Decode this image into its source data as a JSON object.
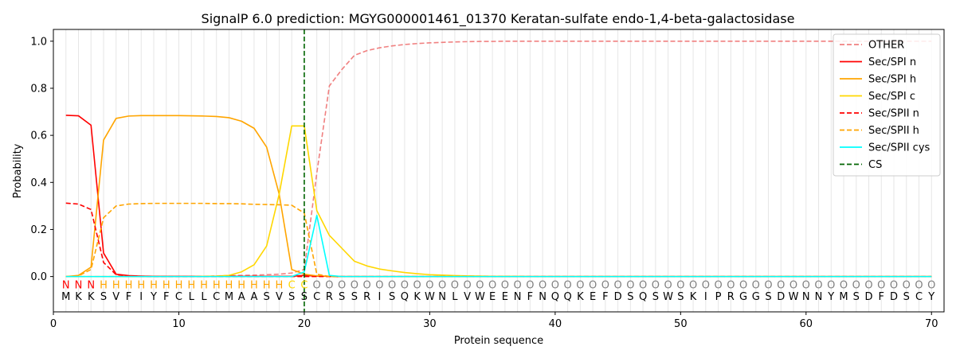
{
  "chart_data": {
    "type": "line",
    "title": "SignalP 6.0 prediction: MGYG000001461_01370 Keratan-sulfate endo-1,4-beta-galactosidase",
    "xlabel": "Protein sequence",
    "ylabel": "Probability",
    "xlim": [
      0,
      71
    ],
    "ylim": [
      -0.15,
      1.05
    ],
    "xticks": [
      0,
      10,
      20,
      30,
      40,
      50,
      60,
      70
    ],
    "yticks": [
      0.0,
      0.2,
      0.4,
      0.6,
      0.8,
      1.0
    ],
    "ytick_labels": [
      "0.0",
      "0.2",
      "0.4",
      "0.6",
      "0.8",
      "1.0"
    ],
    "grid": "vertical lines at each residue",
    "legend_position": "top-right",
    "sequence": "MKKSVFIYFCLLCMAASVSSCRSSRISQKWNLVWEENFNQQKEFDSQSWSKIPRGGSDWNNYMSDFDSCY",
    "labels": "NNNHHHHHHHHHHHHHHHCCOOOOOOOOOOOOOOOOOOOOOOOOOOOOOOOOOOOOOOOOOOOOOOOOOO",
    "label_colors": {
      "N": "#ff0000",
      "H": "#ffa500",
      "C": "#ffd700",
      "O": "#808080"
    },
    "cleavage_site": 20,
    "series": [
      {
        "name": "OTHER",
        "color": "#f08080",
        "dash": "dashed",
        "values": [
          0.0,
          0.0,
          0.0,
          0.0,
          0.0,
          0.0,
          0.0,
          0.0,
          0.0,
          0.0,
          0.0,
          0.0,
          0.003,
          0.004,
          0.005,
          0.006,
          0.008,
          0.01,
          0.015,
          0.03,
          0.44,
          0.81,
          0.88,
          0.94,
          0.96,
          0.972,
          0.98,
          0.986,
          0.99,
          0.993,
          0.995,
          0.997,
          0.998,
          0.999,
          0.999,
          1.0,
          1.0,
          1.0,
          1.0,
          1.0,
          1.0,
          1.0,
          1.0,
          1.0,
          1.0,
          1.0,
          1.0,
          1.0,
          1.0,
          1.0,
          1.0,
          1.0,
          1.0,
          1.0,
          1.0,
          1.0,
          1.0,
          1.0,
          1.0,
          1.0,
          1.0,
          1.0,
          1.0,
          1.0,
          1.0,
          1.0,
          1.0,
          1.0,
          1.0,
          1.0
        ]
      },
      {
        "name": "Sec/SPI n",
        "color": "#ff0000",
        "dash": "solid",
        "values": [
          0.685,
          0.683,
          0.643,
          0.1,
          0.01,
          0.004,
          0.002,
          0.001,
          0.001,
          0.001,
          0.001,
          0.001,
          0.001,
          0.001,
          0.001,
          0.001,
          0.001,
          0.001,
          0.001,
          0.005,
          0.002,
          0.001,
          0.0,
          0.0,
          0.0,
          0.0,
          0.0,
          0.0,
          0.0,
          0.0,
          0.0,
          0.0,
          0.0,
          0.0,
          0.0,
          0.0,
          0.0,
          0.0,
          0.0,
          0.0,
          0.0,
          0.0,
          0.0,
          0.0,
          0.0,
          0.0,
          0.0,
          0.0,
          0.0,
          0.0,
          0.0,
          0.0,
          0.0,
          0.0,
          0.0,
          0.0,
          0.0,
          0.0,
          0.0,
          0.0,
          0.0,
          0.0,
          0.0,
          0.0,
          0.0,
          0.0,
          0.0,
          0.0,
          0.0,
          0.0
        ]
      },
      {
        "name": "Sec/SPI h",
        "color": "#ffa500",
        "dash": "solid",
        "values": [
          0.0,
          0.005,
          0.04,
          0.58,
          0.672,
          0.682,
          0.684,
          0.684,
          0.684,
          0.684,
          0.683,
          0.682,
          0.68,
          0.675,
          0.66,
          0.63,
          0.55,
          0.35,
          0.03,
          0.01,
          0.003,
          0.001,
          0.0,
          0.0,
          0.0,
          0.0,
          0.0,
          0.0,
          0.0,
          0.0,
          0.0,
          0.0,
          0.0,
          0.0,
          0.0,
          0.0,
          0.0,
          0.0,
          0.0,
          0.0,
          0.0,
          0.0,
          0.0,
          0.0,
          0.0,
          0.0,
          0.0,
          0.0,
          0.0,
          0.0,
          0.0,
          0.0,
          0.0,
          0.0,
          0.0,
          0.0,
          0.0,
          0.0,
          0.0,
          0.0,
          0.0,
          0.0,
          0.0,
          0.0,
          0.0,
          0.0,
          0.0,
          0.0,
          0.0,
          0.0
        ]
      },
      {
        "name": "Sec/SPI c",
        "color": "#ffd700",
        "dash": "solid",
        "values": [
          0.0,
          0.0,
          0.0,
          0.0,
          0.0,
          0.0,
          0.0,
          0.0,
          0.0,
          0.0,
          0.0,
          0.001,
          0.002,
          0.005,
          0.02,
          0.05,
          0.13,
          0.35,
          0.64,
          0.64,
          0.28,
          0.175,
          0.12,
          0.065,
          0.045,
          0.032,
          0.024,
          0.017,
          0.012,
          0.008,
          0.006,
          0.004,
          0.003,
          0.002,
          0.001,
          0.001,
          0.001,
          0.0,
          0.0,
          0.0,
          0.0,
          0.0,
          0.0,
          0.0,
          0.0,
          0.0,
          0.0,
          0.0,
          0.0,
          0.0,
          0.0,
          0.0,
          0.0,
          0.0,
          0.0,
          0.0,
          0.0,
          0.0,
          0.0,
          0.0,
          0.0,
          0.0,
          0.0,
          0.0,
          0.0,
          0.0,
          0.0,
          0.0,
          0.0,
          0.0
        ]
      },
      {
        "name": "Sec/SPII n",
        "color": "#ff0000",
        "dash": "dashed",
        "values": [
          0.312,
          0.308,
          0.285,
          0.06,
          0.008,
          0.002,
          0.001,
          0.0,
          0.0,
          0.0,
          0.0,
          0.0,
          0.0,
          0.0,
          0.0,
          0.0,
          0.0,
          0.0,
          0.0,
          0.0,
          0.0,
          0.0,
          0.0,
          0.0,
          0.0,
          0.0,
          0.0,
          0.0,
          0.0,
          0.0,
          0.0,
          0.0,
          0.0,
          0.0,
          0.0,
          0.0,
          0.0,
          0.0,
          0.0,
          0.0,
          0.0,
          0.0,
          0.0,
          0.0,
          0.0,
          0.0,
          0.0,
          0.0,
          0.0,
          0.0,
          0.0,
          0.0,
          0.0,
          0.0,
          0.0,
          0.0,
          0.0,
          0.0,
          0.0,
          0.0,
          0.0,
          0.0,
          0.0,
          0.0,
          0.0,
          0.0,
          0.0,
          0.0,
          0.0,
          0.0
        ]
      },
      {
        "name": "Sec/SPII h",
        "color": "#ffa500",
        "dash": "dashed",
        "values": [
          0.0,
          0.003,
          0.03,
          0.25,
          0.3,
          0.308,
          0.31,
          0.311,
          0.311,
          0.311,
          0.311,
          0.311,
          0.31,
          0.31,
          0.309,
          0.307,
          0.306,
          0.305,
          0.303,
          0.27,
          0.01,
          0.0,
          0.0,
          0.0,
          0.0,
          0.0,
          0.0,
          0.0,
          0.0,
          0.0,
          0.0,
          0.0,
          0.0,
          0.0,
          0.0,
          0.0,
          0.0,
          0.0,
          0.0,
          0.0,
          0.0,
          0.0,
          0.0,
          0.0,
          0.0,
          0.0,
          0.0,
          0.0,
          0.0,
          0.0,
          0.0,
          0.0,
          0.0,
          0.0,
          0.0,
          0.0,
          0.0,
          0.0,
          0.0,
          0.0,
          0.0,
          0.0,
          0.0,
          0.0,
          0.0,
          0.0,
          0.0,
          0.0,
          0.0,
          0.0
        ]
      },
      {
        "name": "Sec/SPII cys",
        "color": "#00ffff",
        "dash": "solid",
        "values": [
          0.0,
          0.0,
          0.0,
          0.0,
          0.0,
          0.0,
          0.0,
          0.0,
          0.0,
          0.0,
          0.0,
          0.0,
          0.0,
          0.0,
          0.0,
          0.0,
          0.0,
          0.0,
          0.0,
          0.02,
          0.26,
          0.005,
          0.0,
          0.0,
          0.0,
          0.0,
          0.0,
          0.0,
          0.0,
          0.0,
          0.0,
          0.0,
          0.0,
          0.0,
          0.0,
          0.0,
          0.0,
          0.0,
          0.0,
          0.0,
          0.0,
          0.0,
          0.0,
          0.0,
          0.0,
          0.0,
          0.0,
          0.0,
          0.0,
          0.0,
          0.0,
          0.0,
          0.0,
          0.0,
          0.0,
          0.0,
          0.0,
          0.0,
          0.0,
          0.0,
          0.0,
          0.0,
          0.0,
          0.0,
          0.0,
          0.0,
          0.0,
          0.0,
          0.0,
          0.0
        ]
      }
    ],
    "cs_legend": {
      "name": "CS",
      "color": "#006400",
      "dash": "dashed"
    }
  }
}
